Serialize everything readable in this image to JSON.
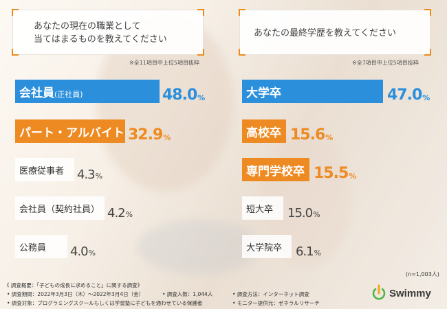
{
  "chart_data": [
    {
      "type": "bar",
      "title": "あなたの現在の職業として\n当てはまるものを教えてください",
      "note": "※全11項目中上位5項目抜粋",
      "categories": [
        "会社員",
        "パート・アルバイト",
        "医療従事者",
        "会社員（契約社員）",
        "公務員"
      ],
      "category_notes": [
        "(正社員)",
        "",
        "",
        "",
        ""
      ],
      "values": [
        48.0,
        32.9,
        4.3,
        4.2,
        4.0
      ],
      "unit": "%",
      "styles": [
        "blue",
        "orange",
        "grey",
        "grey",
        "grey"
      ]
    },
    {
      "type": "bar",
      "title": "あなたの最終学歴を教えてください",
      "note": "※全7項目中上位5項目抜粋",
      "categories": [
        "大学卒",
        "高校卒",
        "専門学校卒",
        "短大卒",
        "大学院卒"
      ],
      "category_notes": [
        "",
        "",
        "",
        "",
        ""
      ],
      "values": [
        47.0,
        15.6,
        15.5,
        15.0,
        6.1
      ],
      "unit": "%",
      "styles": [
        "blue",
        "orange",
        "orange",
        "grey",
        "grey"
      ],
      "sample_size": "(n=1,003人)"
    }
  ],
  "footer": {
    "overview": "《 調査概要：「子どもの成長に求めること」に関する調査》",
    "period": "• 調査期間：2022年3月3日（木）～2022年3月4日（金）",
    "respondents": "• 調査人数：1,044人",
    "method": "• 調査方法：インターネット調査",
    "target": "• 調査対象：プログラミングスクールもしくは学習塾に子どもを通わせている保護者",
    "provider": "• モニター提供元：ゼネラルリサーチ",
    "brand": "Swimmy"
  }
}
